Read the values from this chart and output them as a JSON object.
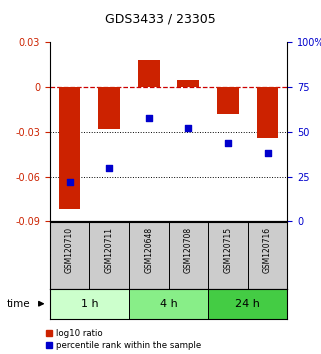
{
  "title": "GDS3433 / 23305",
  "samples": [
    "GSM120710",
    "GSM120711",
    "GSM120648",
    "GSM120708",
    "GSM120715",
    "GSM120716"
  ],
  "groups": [
    {
      "label": "1 h",
      "indices": [
        0,
        1
      ],
      "color": "#ccffcc"
    },
    {
      "label": "4 h",
      "indices": [
        2,
        3
      ],
      "color": "#88ee88"
    },
    {
      "label": "24 h",
      "indices": [
        4,
        5
      ],
      "color": "#44cc44"
    }
  ],
  "log10_ratio": [
    -0.082,
    -0.028,
    0.018,
    0.005,
    -0.018,
    -0.034
  ],
  "percentile_rank": [
    22,
    30,
    58,
    52,
    44,
    38
  ],
  "bar_color": "#cc2200",
  "dot_color": "#0000cc",
  "ylim_left": [
    -0.09,
    0.03
  ],
  "ylim_right": [
    0,
    100
  ],
  "yticks_left": [
    0.03,
    0,
    -0.03,
    -0.06,
    -0.09
  ],
  "yticks_right": [
    100,
    75,
    50,
    25,
    0
  ],
  "hline_zero_color": "#cc0000",
  "hline_dotted_vals": [
    -0.03,
    -0.06
  ],
  "bar_width": 0.55,
  "sample_box_color": "#cccccc",
  "legend_items": [
    {
      "label": "log10 ratio",
      "color": "#cc2200",
      "marker": "s"
    },
    {
      "label": "percentile rank within the sample",
      "color": "#0000cc",
      "marker": "s"
    }
  ]
}
